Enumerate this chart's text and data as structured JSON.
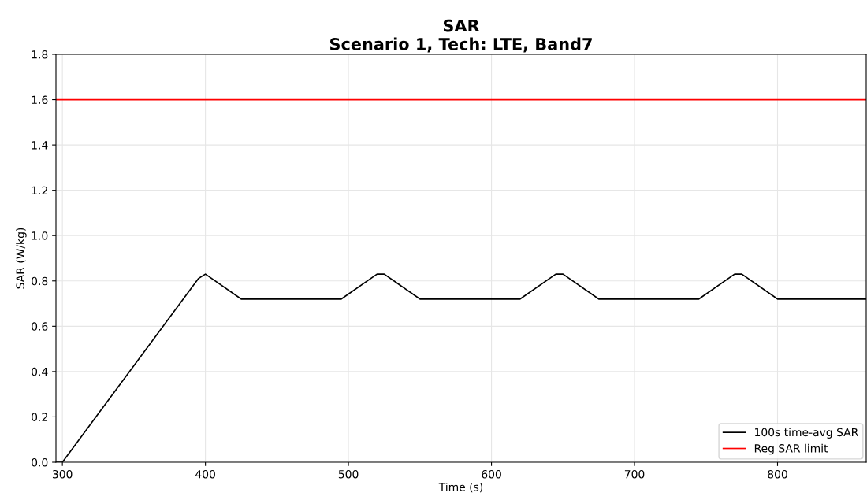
{
  "chart_data": {
    "type": "line",
    "title": "SAR",
    "subtitle": "Scenario 1, Tech: LTE, Band7",
    "xlabel": "Time (s)",
    "ylabel": "SAR (W/kg)",
    "series": [
      {
        "name": "100s time-avg SAR",
        "color": "#000000",
        "x": [
          295.5,
          300,
          395,
          400,
          425,
          495,
          520,
          525,
          550,
          620,
          645,
          650,
          675,
          745,
          770,
          775,
          800,
          862
        ],
        "values": [
          0,
          0,
          0.81,
          0.83,
          0.72,
          0.72,
          0.83,
          0.83,
          0.72,
          0.72,
          0.83,
          0.83,
          0.72,
          0.72,
          0.83,
          0.83,
          0.72,
          0.72
        ]
      }
    ],
    "ref_lines": [
      {
        "axis": "y",
        "value": 1.6,
        "label": "Reg SAR limit",
        "color": "#ff0000"
      }
    ],
    "xlim": [
      295.5,
      862
    ],
    "xticks": [
      300,
      400,
      500,
      600,
      700,
      800
    ],
    "ylim": [
      0,
      1.8
    ],
    "yticks": [
      {
        "value": 0,
        "label": "0.0"
      },
      {
        "value": 0.2,
        "label": "0.2"
      },
      {
        "value": 0.4,
        "label": "0.4"
      },
      {
        "value": 0.6,
        "label": "0.6"
      },
      {
        "value": 0.8,
        "label": "0.8"
      },
      {
        "value": 1.0,
        "label": "1.0"
      },
      {
        "value": 1.2,
        "label": "1.2"
      },
      {
        "value": 1.4,
        "label": "1.4"
      },
      {
        "value": 1.6,
        "label": "1.6"
      },
      {
        "value": 1.8,
        "label": "1.8"
      }
    ],
    "grid": true,
    "legend": "lower right"
  }
}
